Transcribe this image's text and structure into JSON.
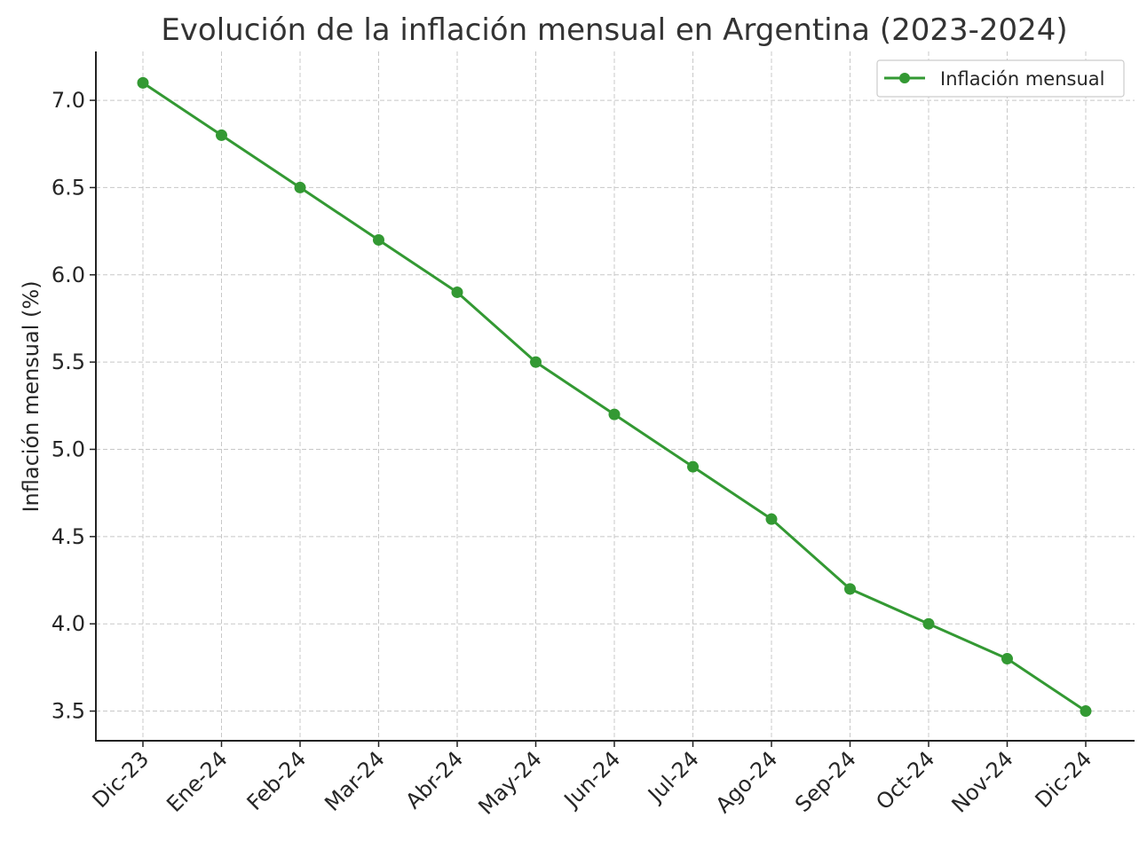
{
  "chart_data": {
    "type": "line",
    "title": "Evolución de la inflación mensual en Argentina (2023-2024)",
    "xlabel": "",
    "ylabel": "Inflación mensual (%)",
    "categories": [
      "Dic-23",
      "Ene-24",
      "Feb-24",
      "Mar-24",
      "Abr-24",
      "May-24",
      "Jun-24",
      "Jul-24",
      "Ago-24",
      "Sep-24",
      "Oct-24",
      "Nov-24",
      "Dic-24"
    ],
    "series": [
      {
        "name": "Inflación mensual",
        "values": [
          7.1,
          6.8,
          6.5,
          6.2,
          5.9,
          5.5,
          5.2,
          4.9,
          4.6,
          4.2,
          4.0,
          3.8,
          3.5
        ],
        "color": "#339933",
        "marker": "circle"
      }
    ],
    "ylim": [
      3.33,
      7.28
    ],
    "yticks": [
      3.5,
      4.0,
      4.5,
      5.0,
      5.5,
      6.0,
      6.5,
      7.0
    ],
    "ytick_labels": [
      "3.5",
      "4.0",
      "4.5",
      "5.0",
      "5.5",
      "6.0",
      "6.5",
      "7.0"
    ],
    "grid": true,
    "grid_style": "dashed",
    "legend_position": "top-right"
  }
}
